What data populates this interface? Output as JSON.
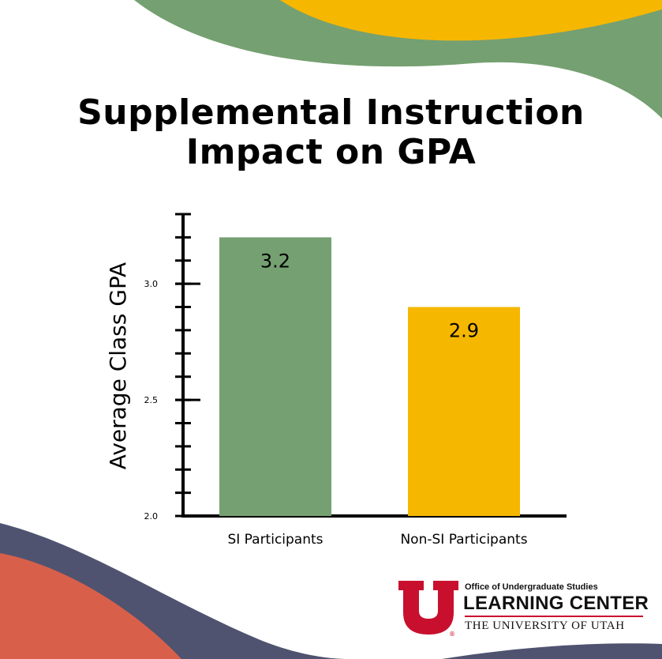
{
  "title_line1": "Supplemental Instruction",
  "title_line2": "Impact on GPA",
  "colors": {
    "green": "#75a071",
    "gold": "#f6b700",
    "navy": "#4f5370",
    "coral": "#d8604a",
    "utah_red": "#c8102e"
  },
  "chart_data": {
    "type": "bar",
    "categories": [
      "SI Participants",
      "Non-SI Participants"
    ],
    "values": [
      3.2,
      2.9
    ],
    "value_labels": [
      "3.2",
      "2.9"
    ],
    "colors": [
      "#75a071",
      "#f6b700"
    ],
    "title": "Supplemental Instruction Impact on GPA",
    "xlabel": "",
    "ylabel": "Average Class GPA",
    "ylim": [
      2.0,
      3.3
    ],
    "yticks": [
      2.0,
      2.5,
      3.0
    ],
    "ytick_labels": [
      "2.0",
      "2.5",
      "3.0"
    ],
    "minor_tick_step": 0.1,
    "grid": false
  },
  "logo": {
    "line1": "Office of Undergraduate Studies",
    "line2": "LEARNING CENTER",
    "line3": "THE UNIVERSITY OF UTAH",
    "mark": "U"
  }
}
